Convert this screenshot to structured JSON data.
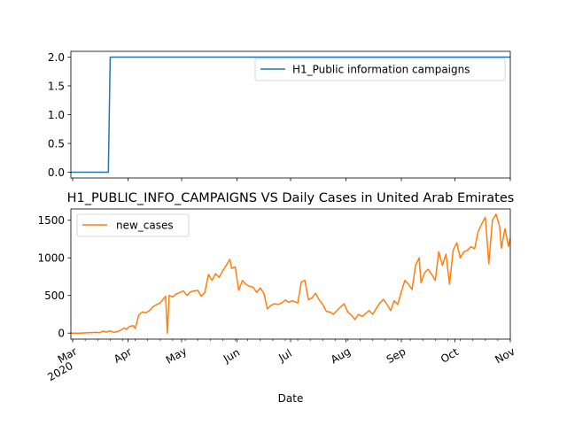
{
  "chart_data": [
    {
      "type": "line",
      "title": "",
      "xlabel": "",
      "ylabel": "",
      "ylim": [
        -0.1,
        2.1
      ],
      "yticks": [
        "0.0",
        "0.5",
        "1.0",
        "1.5",
        "2.0"
      ],
      "grid": false,
      "legend_position": "upper-right",
      "series": [
        {
          "name": "H1_Public information campaigns",
          "color": "#1f77b4",
          "points": [
            [
              "2020-02-29",
              0
            ],
            [
              "2020-03-21",
              0
            ],
            [
              "2020-03-22",
              2
            ],
            [
              "2020-11-01",
              2
            ]
          ]
        }
      ]
    },
    {
      "type": "line",
      "title": "H1_PUBLIC_INFO_CAMPAIGNS VS Daily Cases in United Arab Emirates",
      "xlabel": "Date",
      "ylabel": "",
      "ylim": [
        -80,
        1650
      ],
      "yticks": [
        "0",
        "500",
        "1000",
        "1500"
      ],
      "xticks": [
        {
          "label": "Mar",
          "sub": "2020",
          "date": "2020-03-01"
        },
        {
          "label": "Apr",
          "sub": "",
          "date": "2020-04-01"
        },
        {
          "label": "May",
          "sub": "",
          "date": "2020-05-01"
        },
        {
          "label": "Jun",
          "sub": "",
          "date": "2020-06-01"
        },
        {
          "label": "Jul",
          "sub": "",
          "date": "2020-07-01"
        },
        {
          "label": "Aug",
          "sub": "",
          "date": "2020-08-01"
        },
        {
          "label": "Sep",
          "sub": "",
          "date": "2020-09-01"
        },
        {
          "label": "Oct",
          "sub": "",
          "date": "2020-10-01"
        },
        {
          "label": "Nov",
          "sub": "",
          "date": "2020-11-01"
        }
      ],
      "grid": false,
      "legend_position": "upper-left",
      "series": [
        {
          "name": "new_cases",
          "color": "#ff7f0e",
          "points": [
            [
              "2020-02-29",
              0
            ],
            [
              "2020-03-05",
              0
            ],
            [
              "2020-03-10",
              5
            ],
            [
              "2020-03-14",
              10
            ],
            [
              "2020-03-16",
              5
            ],
            [
              "2020-03-18",
              25
            ],
            [
              "2020-03-20",
              15
            ],
            [
              "2020-03-22",
              30
            ],
            [
              "2020-03-24",
              10
            ],
            [
              "2020-03-26",
              20
            ],
            [
              "2020-03-28",
              40
            ],
            [
              "2020-03-30",
              70
            ],
            [
              "2020-03-31",
              50
            ],
            [
              "2020-04-02",
              90
            ],
            [
              "2020-04-04",
              100
            ],
            [
              "2020-04-05",
              60
            ],
            [
              "2020-04-07",
              240
            ],
            [
              "2020-04-09",
              280
            ],
            [
              "2020-04-11",
              270
            ],
            [
              "2020-04-13",
              300
            ],
            [
              "2020-04-15",
              350
            ],
            [
              "2020-04-17",
              380
            ],
            [
              "2020-04-19",
              400
            ],
            [
              "2020-04-21",
              460
            ],
            [
              "2020-04-22",
              490
            ],
            [
              "2020-04-23",
              0
            ],
            [
              "2020-04-24",
              500
            ],
            [
              "2020-04-26",
              480
            ],
            [
              "2020-04-28",
              520
            ],
            [
              "2020-04-30",
              540
            ],
            [
              "2020-05-02",
              560
            ],
            [
              "2020-05-04",
              500
            ],
            [
              "2020-05-06",
              550
            ],
            [
              "2020-05-08",
              560
            ],
            [
              "2020-05-10",
              570
            ],
            [
              "2020-05-12",
              490
            ],
            [
              "2020-05-14",
              540
            ],
            [
              "2020-05-16",
              780
            ],
            [
              "2020-05-18",
              700
            ],
            [
              "2020-05-20",
              790
            ],
            [
              "2020-05-22",
              740
            ],
            [
              "2020-05-24",
              830
            ],
            [
              "2020-05-26",
              900
            ],
            [
              "2020-05-28",
              980
            ],
            [
              "2020-05-29",
              860
            ],
            [
              "2020-05-31",
              880
            ],
            [
              "2020-06-02",
              570
            ],
            [
              "2020-06-04",
              700
            ],
            [
              "2020-06-06",
              650
            ],
            [
              "2020-06-08",
              620
            ],
            [
              "2020-06-10",
              610
            ],
            [
              "2020-06-12",
              540
            ],
            [
              "2020-06-14",
              600
            ],
            [
              "2020-06-16",
              530
            ],
            [
              "2020-06-18",
              320
            ],
            [
              "2020-06-20",
              370
            ],
            [
              "2020-06-22",
              390
            ],
            [
              "2020-06-24",
              380
            ],
            [
              "2020-06-26",
              400
            ],
            [
              "2020-06-28",
              440
            ],
            [
              "2020-06-30",
              410
            ],
            [
              "2020-07-02",
              430
            ],
            [
              "2020-07-05",
              400
            ],
            [
              "2020-07-07",
              680
            ],
            [
              "2020-07-09",
              700
            ],
            [
              "2020-07-11",
              440
            ],
            [
              "2020-07-13",
              470
            ],
            [
              "2020-07-15",
              530
            ],
            [
              "2020-07-17",
              440
            ],
            [
              "2020-07-19",
              380
            ],
            [
              "2020-07-21",
              290
            ],
            [
              "2020-07-23",
              280
            ],
            [
              "2020-07-25",
              250
            ],
            [
              "2020-07-27",
              300
            ],
            [
              "2020-07-29",
              350
            ],
            [
              "2020-07-31",
              390
            ],
            [
              "2020-08-02",
              280
            ],
            [
              "2020-08-04",
              240
            ],
            [
              "2020-08-06",
              180
            ],
            [
              "2020-08-08",
              250
            ],
            [
              "2020-08-10",
              220
            ],
            [
              "2020-08-12",
              260
            ],
            [
              "2020-08-14",
              300
            ],
            [
              "2020-08-16",
              250
            ],
            [
              "2020-08-18",
              330
            ],
            [
              "2020-08-20",
              400
            ],
            [
              "2020-08-22",
              450
            ],
            [
              "2020-08-24",
              380
            ],
            [
              "2020-08-26",
              300
            ],
            [
              "2020-08-28",
              430
            ],
            [
              "2020-08-30",
              380
            ],
            [
              "2020-09-01",
              550
            ],
            [
              "2020-09-03",
              700
            ],
            [
              "2020-09-05",
              650
            ],
            [
              "2020-09-07",
              580
            ],
            [
              "2020-09-09",
              900
            ],
            [
              "2020-09-11",
              1000
            ],
            [
              "2020-09-12",
              670
            ],
            [
              "2020-09-14",
              800
            ],
            [
              "2020-09-16",
              850
            ],
            [
              "2020-09-18",
              780
            ],
            [
              "2020-09-20",
              700
            ],
            [
              "2020-09-22",
              1080
            ],
            [
              "2020-09-24",
              900
            ],
            [
              "2020-09-26",
              1050
            ],
            [
              "2020-09-28",
              650
            ],
            [
              "2020-09-30",
              1100
            ],
            [
              "2020-10-02",
              1200
            ],
            [
              "2020-10-04",
              1000
            ],
            [
              "2020-10-06",
              1080
            ],
            [
              "2020-10-08",
              1100
            ],
            [
              "2020-10-10",
              1150
            ],
            [
              "2020-10-12",
              1120
            ],
            [
              "2020-10-14",
              1350
            ],
            [
              "2020-10-16",
              1450
            ],
            [
              "2020-10-18",
              1540
            ],
            [
              "2020-10-20",
              920
            ],
            [
              "2020-10-22",
              1500
            ],
            [
              "2020-10-24",
              1580
            ],
            [
              "2020-10-26",
              1420
            ],
            [
              "2020-10-27",
              1130
            ],
            [
              "2020-10-29",
              1390
            ],
            [
              "2020-10-31",
              1150
            ],
            [
              "2020-11-01",
              1260
            ]
          ]
        }
      ]
    }
  ]
}
